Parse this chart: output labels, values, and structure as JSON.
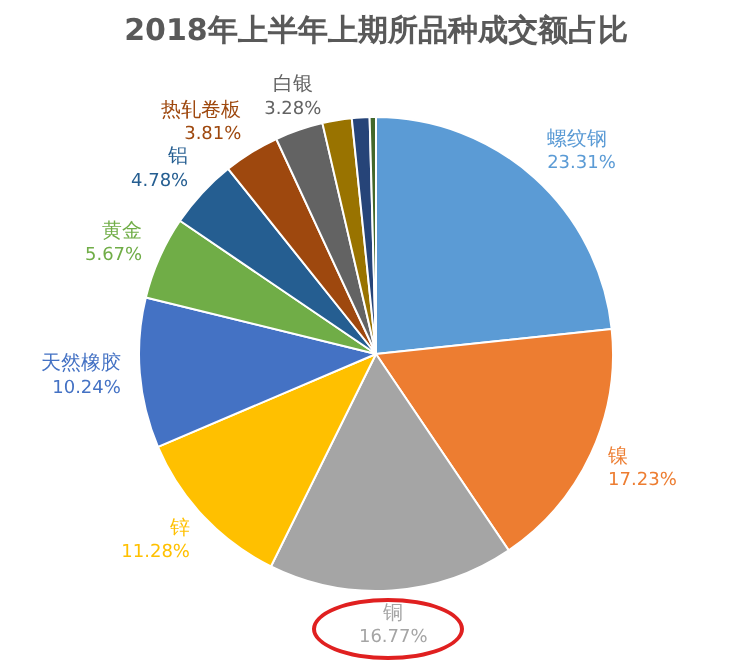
{
  "chart_data": {
    "type": "pie",
    "title": "2018年上半年上期所品种成交额占比",
    "categories": [
      "螺纹钢",
      "镍",
      "铜",
      "锌",
      "天然橡胶",
      "黄金",
      "铝",
      "热轧卷板",
      "白银",
      null,
      null,
      null
    ],
    "values": [
      23.31,
      17.23,
      16.77,
      11.28,
      10.24,
      5.67,
      4.78,
      3.81,
      3.28,
      2.0,
      1.2,
      0.43
    ],
    "value_labels": [
      "23.31%",
      "17.23%",
      "16.77%",
      "11.28%",
      "10.24%",
      "5.67%",
      "4.78%",
      "3.81%",
      "3.28%",
      null,
      null,
      null
    ],
    "colors": [
      "#5b9bd5",
      "#ed7d31",
      "#a5a5a5",
      "#ffc000",
      "#4472c4",
      "#70ad47",
      "#255e91",
      "#9e480e",
      "#636363",
      "#997300",
      "#264478",
      "#43682b"
    ],
    "legend": false
  }
}
